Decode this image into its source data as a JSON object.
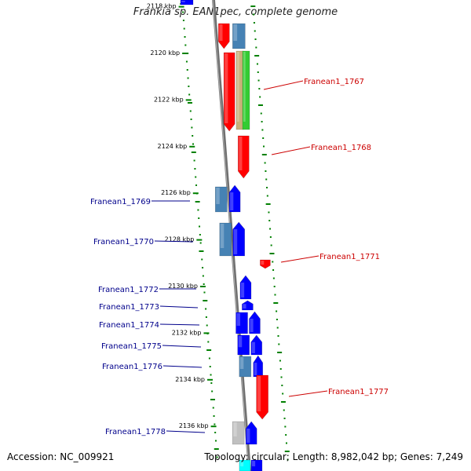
{
  "title": "Frankia sp. EAN1pec, complete genome",
  "footer": {
    "accession": "Accession: NC_009921",
    "topology": "Topology: circular; Length: 8,982,042 bp; Genes: 7,249"
  },
  "colors": {
    "forward_gene": "#0000ff",
    "reverse_gene": "#ff0000",
    "forward_label": "#00008b",
    "reverse_label": "#cc0000",
    "tick": "#008000",
    "backbone": "#888888",
    "steel_blue": "#4682b4",
    "tan": "#c8b27a",
    "green": "#33cc33",
    "gray": "#c0c0c0",
    "cyan": "#00ffff"
  },
  "ticks": [
    {
      "label": "2118 kbp",
      "kbp": 2118
    },
    {
      "label": "2120 kbp",
      "kbp": 2120
    },
    {
      "label": "2122 kbp",
      "kbp": 2122
    },
    {
      "label": "2124 kbp",
      "kbp": 2124
    },
    {
      "label": "2126 kbp",
      "kbp": 2126
    },
    {
      "label": "2128 kbp",
      "kbp": 2128
    },
    {
      "label": "2130 kbp",
      "kbp": 2130
    },
    {
      "label": "2132 kbp",
      "kbp": 2132
    },
    {
      "label": "2134 kbp",
      "kbp": 2134
    },
    {
      "label": "2136 kbp",
      "kbp": 2136
    }
  ],
  "gene_labels": [
    {
      "id": "Franean1_1767",
      "strand": "reverse"
    },
    {
      "id": "Franean1_1768",
      "strand": "reverse"
    },
    {
      "id": "Franean1_1769",
      "strand": "forward"
    },
    {
      "id": "Franean1_1770",
      "strand": "forward"
    },
    {
      "id": "Franean1_1771",
      "strand": "reverse"
    },
    {
      "id": "Franean1_1772",
      "strand": "forward"
    },
    {
      "id": "Franean1_1773",
      "strand": "forward"
    },
    {
      "id": "Franean1_1774",
      "strand": "forward"
    },
    {
      "id": "Franean1_1775",
      "strand": "forward"
    },
    {
      "id": "Franean1_1776",
      "strand": "forward"
    },
    {
      "id": "Franean1_1777",
      "strand": "reverse"
    },
    {
      "id": "Franean1_1778",
      "strand": "forward"
    }
  ]
}
